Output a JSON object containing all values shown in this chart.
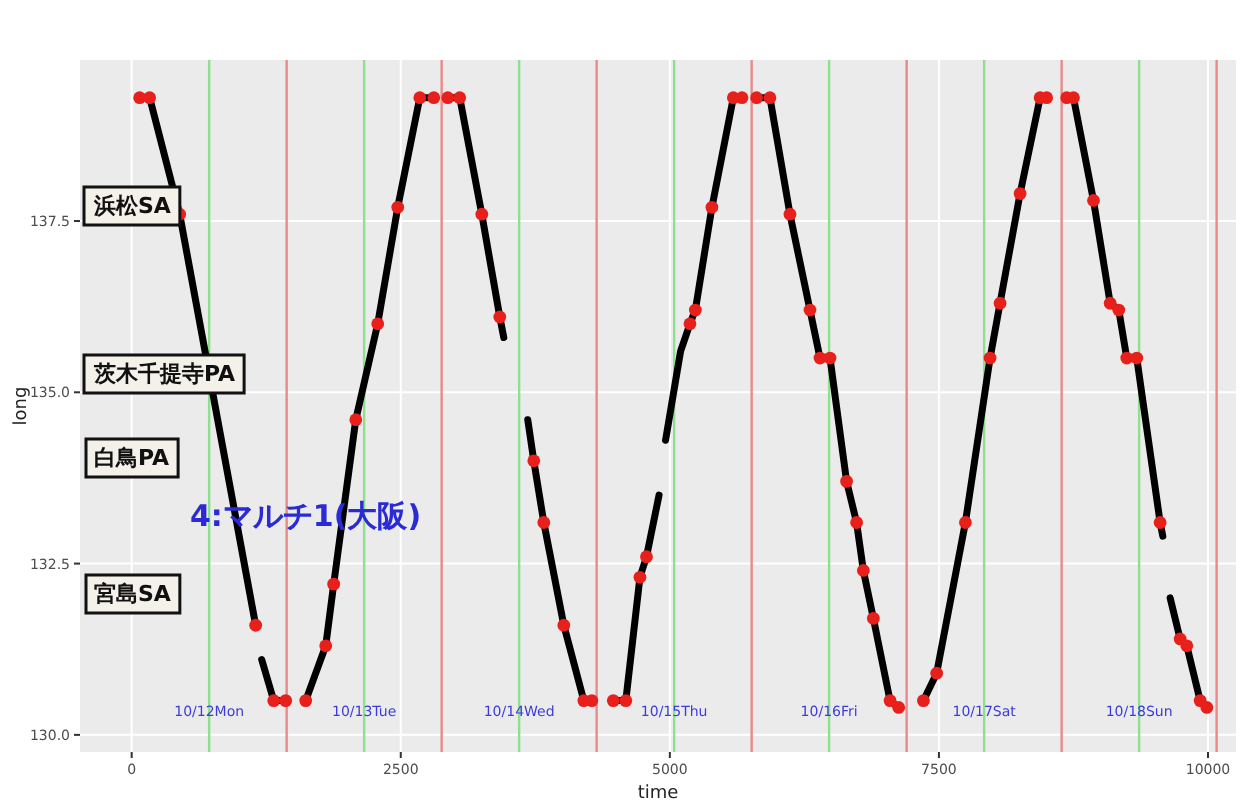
{
  "chart_data": {
    "type": "line",
    "xlabel": "time",
    "ylabel": "long",
    "xlim": [
      -480,
      10260
    ],
    "ylim": [
      129.75,
      139.85
    ],
    "xticks": [
      0,
      2500,
      5000,
      7500,
      10000
    ],
    "yticks": [
      {
        "value": 130,
        "label": "130.0"
      },
      {
        "value": 132.5,
        "label": "132.5"
      },
      {
        "value": 135,
        "label": "135.0"
      },
      {
        "value": 137.5,
        "label": "137.5"
      }
    ],
    "grid": true,
    "series": [
      {
        "color": "#000000",
        "x": [
          74,
          167,
          446,
          1152,
          null,
          1208,
          1320,
          1431,
          null,
          1617,
          1803,
          1877,
          2082,
          2286,
          2472,
          2677,
          2807,
          null,
          2937,
          3048,
          3253,
          3420,
          3457,
          null,
          3680,
          3736,
          3829,
          4015,
          4201,
          4275,
          null,
          4475,
          4591,
          4722,
          4783,
          4900,
          null,
          4960,
          5100,
          5187,
          5237,
          5391,
          5590,
          5670,
          null,
          5806,
          5930,
          6116,
          6302,
          6395,
          6488,
          6642,
          6735,
          6798,
          6891,
          7046,
          7126,
          null,
          7356,
          7479,
          7746,
          7975,
          8068,
          8254,
          8440,
          8501,
          null,
          8687,
          8750,
          8936,
          9091,
          9171,
          9245,
          9338,
          9555,
          9580,
          null,
          9648,
          9741,
          9803,
          9927,
          9989
        ],
        "values": [
          139.3,
          139.3,
          137.6,
          131.6,
          null,
          131.1,
          130.5,
          130.5,
          null,
          130.5,
          131.3,
          132.2,
          134.6,
          136.0,
          137.7,
          139.3,
          139.3,
          null,
          139.3,
          139.3,
          137.6,
          136.1,
          135.8,
          null,
          134.6,
          134.0,
          133.1,
          131.6,
          130.5,
          130.5,
          null,
          130.5,
          130.5,
          132.3,
          132.6,
          133.5,
          null,
          134.3,
          135.6,
          136.0,
          136.2,
          137.7,
          139.3,
          139.3,
          null,
          139.3,
          139.3,
          137.6,
          136.2,
          135.5,
          135.5,
          133.7,
          133.1,
          132.4,
          131.7,
          130.5,
          130.4,
          null,
          130.5,
          130.9,
          133.1,
          135.5,
          136.3,
          137.9,
          139.3,
          139.3,
          null,
          139.3,
          139.3,
          137.8,
          136.3,
          136.2,
          135.5,
          135.5,
          133.1,
          132.9,
          null,
          132.0,
          131.4,
          131.3,
          130.5,
          130.4
        ]
      },
      {
        "type": "scatter",
        "color": "#e8201c",
        "marker": "circle",
        "x": [
          74,
          167,
          446,
          1152,
          1320,
          1431,
          1617,
          1803,
          1877,
          2082,
          2286,
          2472,
          2677,
          2807,
          2937,
          3048,
          3253,
          3420,
          3736,
          3829,
          4015,
          4201,
          4275,
          4475,
          4591,
          4722,
          4783,
          5187,
          5237,
          5391,
          5590,
          5670,
          5806,
          5930,
          6116,
          6302,
          6395,
          6488,
          6642,
          6735,
          6798,
          6891,
          7046,
          7126,
          7356,
          7479,
          7746,
          7975,
          8068,
          8254,
          8440,
          8501,
          8687,
          8750,
          8936,
          9091,
          9171,
          9245,
          9338,
          9555,
          9741,
          9803,
          9927,
          9989
        ],
        "values": [
          139.3,
          139.3,
          137.6,
          131.6,
          130.5,
          130.5,
          130.5,
          131.3,
          132.2,
          134.6,
          136.0,
          137.7,
          139.3,
          139.3,
          139.3,
          139.3,
          137.6,
          136.1,
          134.0,
          133.1,
          131.6,
          130.5,
          130.5,
          130.5,
          130.5,
          132.3,
          132.6,
          136.0,
          136.2,
          137.7,
          139.3,
          139.3,
          139.3,
          139.3,
          137.6,
          136.2,
          135.5,
          135.5,
          133.7,
          133.1,
          132.4,
          131.7,
          130.5,
          130.4,
          130.5,
          130.9,
          133.1,
          135.5,
          136.3,
          137.9,
          139.3,
          139.3,
          139.3,
          139.3,
          137.8,
          136.3,
          136.2,
          135.5,
          135.5,
          133.1,
          131.4,
          131.3,
          130.5,
          130.4
        ]
      }
    ],
    "ref_lines": [
      {
        "axis": "x",
        "value": 720,
        "label": "10/12Mon",
        "color": "#8ee08e"
      },
      {
        "axis": "x",
        "value": 1440,
        "color": "#e88a8a"
      },
      {
        "axis": "x",
        "value": 2160,
        "label": "10/13Tue",
        "color": "#8ee08e"
      },
      {
        "axis": "x",
        "value": 2880,
        "color": "#e88a8a"
      },
      {
        "axis": "x",
        "value": 3600,
        "label": "10/14Wed",
        "color": "#8ee08e"
      },
      {
        "axis": "x",
        "value": 4320,
        "color": "#e88a8a"
      },
      {
        "axis": "x",
        "value": 5040,
        "label": "10/15Thu",
        "color": "#8ee08e"
      },
      {
        "axis": "x",
        "value": 5760,
        "color": "#e88a8a"
      },
      {
        "axis": "x",
        "value": 6480,
        "label": "10/16Fri",
        "color": "#8ee08e"
      },
      {
        "axis": "x",
        "value": 7200,
        "color": "#e88a8a"
      },
      {
        "axis": "x",
        "value": 7920,
        "label": "10/17Sat",
        "color": "#8ee08e"
      },
      {
        "axis": "x",
        "value": 8640,
        "color": "#e88a8a"
      },
      {
        "axis": "x",
        "value": 9360,
        "label": "10/18Sun",
        "color": "#8ee08e"
      },
      {
        "axis": "x",
        "value": 10080,
        "color": "#e88a8a"
      }
    ],
    "annotations": [
      "浜松SA",
      "茨木千提寺PA",
      "白鳥PA",
      "宮島SA",
      "4:マルチ1(大阪)"
    ]
  }
}
